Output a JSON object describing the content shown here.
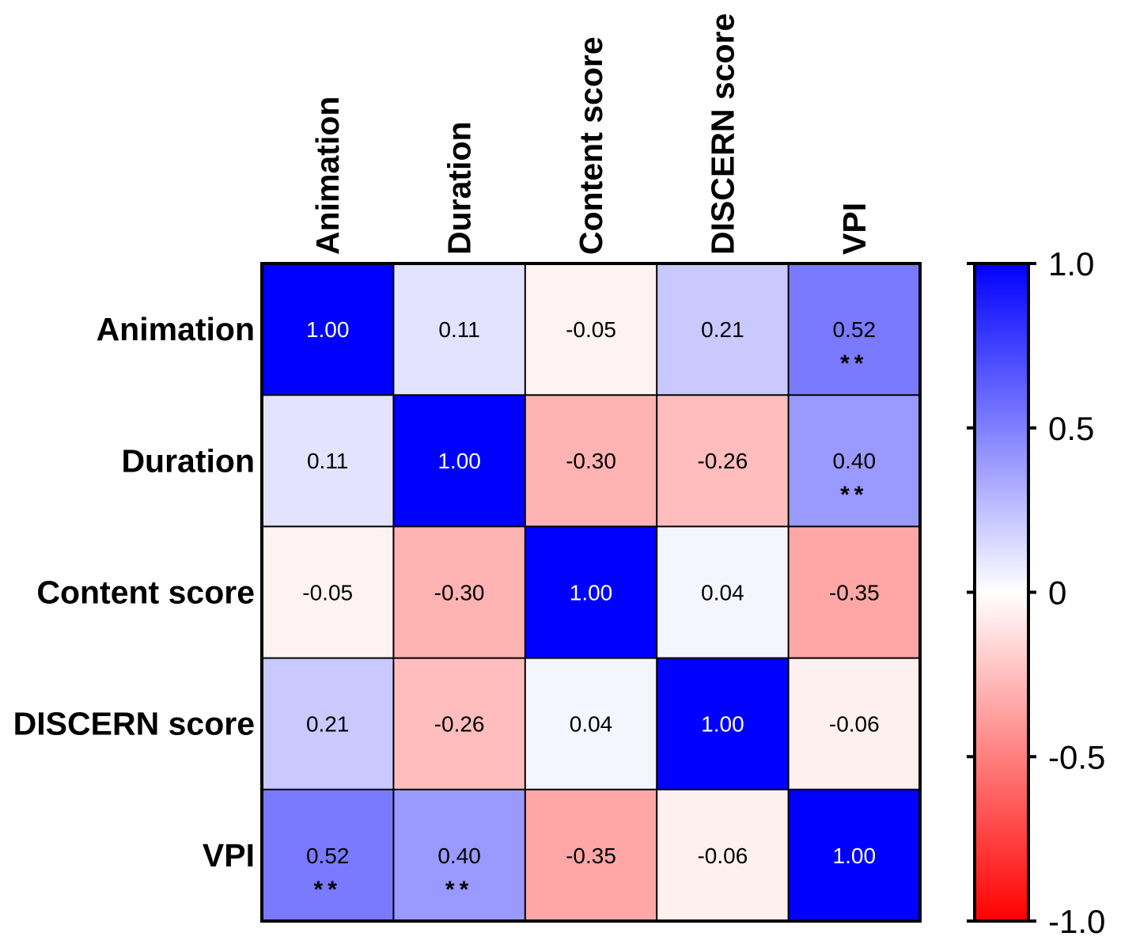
{
  "chart_data": {
    "type": "heatmap",
    "title": "",
    "rows": [
      "Animation",
      "Duration",
      "Content score",
      "DISCERN score",
      "VPI"
    ],
    "columns": [
      "Animation",
      "Duration",
      "Content score",
      "DISCERN score",
      "VPI"
    ],
    "values": [
      [
        1.0,
        0.11,
        -0.05,
        0.21,
        0.52
      ],
      [
        0.11,
        1.0,
        -0.3,
        -0.26,
        0.4
      ],
      [
        -0.05,
        -0.3,
        1.0,
        0.04,
        -0.35
      ],
      [
        0.21,
        -0.26,
        0.04,
        1.0,
        -0.06
      ],
      [
        0.52,
        0.4,
        -0.35,
        -0.06,
        1.0
      ]
    ],
    "value_labels": [
      [
        "1.00",
        "0.11",
        "-0.05",
        "0.21",
        "0.52"
      ],
      [
        "0.11",
        "1.00",
        "-0.30",
        "-0.26",
        "0.40"
      ],
      [
        "-0.05",
        "-0.30",
        "1.00",
        "0.04",
        "-0.35"
      ],
      [
        "0.21",
        "-0.26",
        "0.04",
        "1.00",
        "-0.06"
      ],
      [
        "0.52",
        "0.40",
        "-0.35",
        "-0.06",
        "1.00"
      ]
    ],
    "significance": [
      [
        "",
        "",
        "",
        "",
        "**"
      ],
      [
        "",
        "",
        "",
        "",
        "**"
      ],
      [
        "",
        "",
        "",
        "",
        ""
      ],
      [
        "",
        "",
        "",
        "",
        ""
      ],
      [
        "**",
        "**",
        "",
        "",
        ""
      ]
    ],
    "colorbar": {
      "range": [
        -1.0,
        1.0
      ],
      "ticks": [
        1.0,
        0.5,
        0,
        -0.5,
        -1.0
      ],
      "tick_labels": [
        "1.0",
        "0.5",
        "0",
        "-0.5",
        "-1.0"
      ],
      "color_high": "#0000ff",
      "color_mid": "#ffffff",
      "color_low": "#ff0000"
    }
  }
}
